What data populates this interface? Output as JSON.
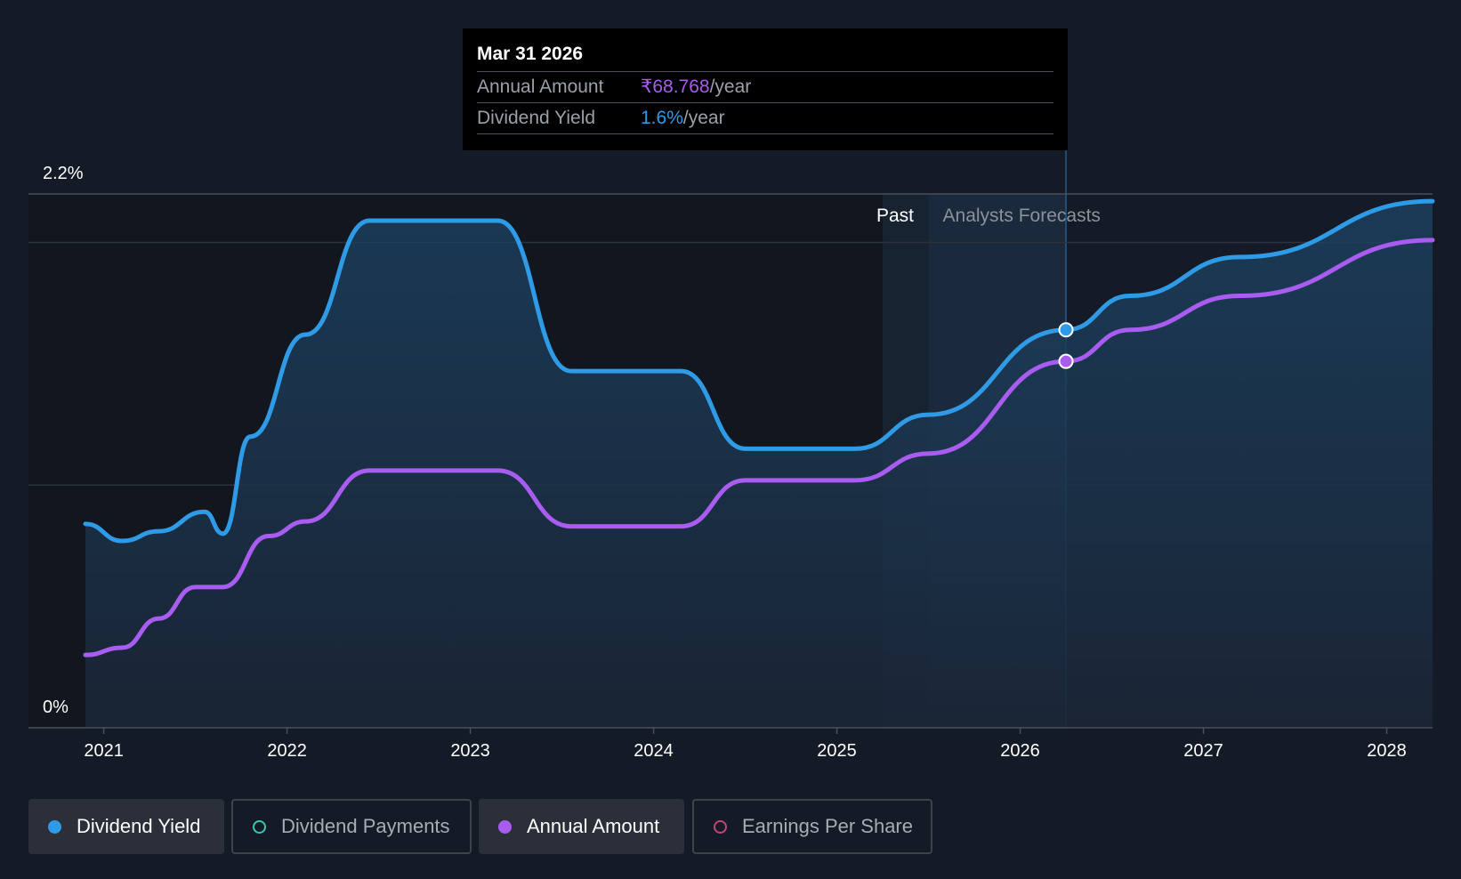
{
  "tooltip": {
    "date": "Mar 31 2026",
    "annual_label": "Annual Amount",
    "annual_value": "₹68.768",
    "yield_label": "Dividend Yield",
    "yield_value": "1.6%",
    "unit": "/year"
  },
  "regions": {
    "past": "Past",
    "forecast": "Analysts Forecasts"
  },
  "colors": {
    "yield": "#2f9be6",
    "amount": "#a95cf0",
    "payments": "#3cc4b4",
    "eps": "#c0457a",
    "background": "#151b26"
  },
  "legend": [
    {
      "label": "Dividend Yield",
      "color": "#2f9be6",
      "active": true
    },
    {
      "label": "Dividend Payments",
      "color": "#3cc4b4",
      "active": false
    },
    {
      "label": "Annual Amount",
      "color": "#a95cf0",
      "active": true
    },
    {
      "label": "Earnings Per Share",
      "color": "#c0457a",
      "active": false
    }
  ],
  "chart_data": {
    "type": "area",
    "ytick_labels": [
      "2.2%",
      "0%"
    ],
    "ylim": [
      0,
      2.2
    ],
    "xlim": [
      2020.9,
      2028.25
    ],
    "xtick_labels": [
      "2021",
      "2022",
      "2023",
      "2024",
      "2025",
      "2026",
      "2027",
      "2028"
    ],
    "past_end": 2025.25,
    "forecast_start": 2025.5,
    "selected_x": 2026.25,
    "series": [
      {
        "name": "Dividend Yield",
        "color": "#2f9be6",
        "x": [
          2020.9,
          2021.1,
          2021.3,
          2021.55,
          2021.65,
          2021.8,
          2022.1,
          2022.45,
          2023.15,
          2023.55,
          2024.15,
          2024.5,
          2025.1,
          2025.5,
          2026.25,
          2026.6,
          2027.2,
          2028.25
        ],
        "y": [
          0.84,
          0.77,
          0.81,
          0.89,
          0.8,
          1.2,
          1.62,
          2.09,
          2.09,
          1.47,
          1.47,
          1.15,
          1.15,
          1.29,
          1.64,
          1.78,
          1.94,
          2.17
        ]
      },
      {
        "name": "Annual Amount",
        "color": "#a95cf0",
        "x": [
          2020.9,
          2021.1,
          2021.3,
          2021.5,
          2021.65,
          2021.9,
          2022.1,
          2022.45,
          2023.15,
          2023.55,
          2024.15,
          2024.5,
          2025.1,
          2025.5,
          2026.25,
          2026.6,
          2027.2,
          2028.25
        ],
        "y": [
          0.3,
          0.33,
          0.45,
          0.58,
          0.58,
          0.79,
          0.85,
          1.06,
          1.06,
          0.83,
          0.83,
          1.02,
          1.02,
          1.13,
          1.51,
          1.64,
          1.78,
          2.01
        ]
      }
    ]
  }
}
